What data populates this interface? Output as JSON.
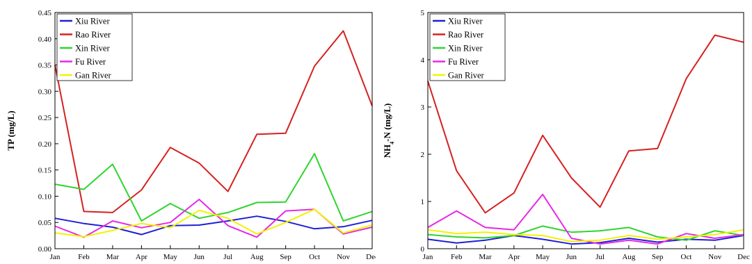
{
  "chart_data": [
    {
      "type": "line",
      "title": "",
      "xlabel": "",
      "ylabel": "TP (mg/L)",
      "categories": [
        "Jan",
        "Feb",
        "Mar",
        "Apr",
        "May",
        "Jun",
        "Jul",
        "Aug",
        "Sep",
        "Oct",
        "Nov",
        "Dec"
      ],
      "ylim": [
        0,
        0.45
      ],
      "yticks": [
        "0.00",
        "0.05",
        "0.10",
        "0.15",
        "0.20",
        "0.25",
        "0.30",
        "0.35",
        "0.40",
        "0.45"
      ],
      "grid": false,
      "legend_position": "top-left",
      "series": [
        {
          "name": "Xiu River",
          "color": "#1f1fd6",
          "values": [
            0.058,
            0.048,
            0.041,
            0.027,
            0.044,
            0.045,
            0.053,
            0.062,
            0.052,
            0.038,
            0.042,
            0.054
          ]
        },
        {
          "name": "Rao River",
          "color": "#d62020",
          "values": [
            0.35,
            0.071,
            0.069,
            0.112,
            0.193,
            0.163,
            0.109,
            0.218,
            0.22,
            0.348,
            0.415,
            0.272
          ]
        },
        {
          "name": "Xin River",
          "color": "#2fd42f",
          "values": [
            0.123,
            0.113,
            0.161,
            0.053,
            0.086,
            0.058,
            0.069,
            0.088,
            0.089,
            0.181,
            0.053,
            0.071
          ]
        },
        {
          "name": "Fu River",
          "color": "#e629e6",
          "values": [
            0.043,
            0.022,
            0.053,
            0.04,
            0.05,
            0.094,
            0.044,
            0.022,
            0.072,
            0.075,
            0.028,
            0.041
          ]
        },
        {
          "name": "Gan River",
          "color": "#f2f200",
          "values": [
            0.03,
            0.023,
            0.035,
            0.048,
            0.04,
            0.073,
            0.058,
            0.028,
            0.05,
            0.075,
            0.03,
            0.045
          ]
        }
      ]
    },
    {
      "type": "line",
      "title": "",
      "xlabel": "",
      "ylabel": "NH",
      "ylabel_subscript": "4",
      "ylabel_suffix": "-N (mg/L)",
      "categories": [
        "Jan",
        "Feb",
        "Mar",
        "Apr",
        "May",
        "Jun",
        "Jul",
        "Aug",
        "Sep",
        "Oct",
        "Nov",
        "Dec"
      ],
      "ylim": [
        0,
        5
      ],
      "yticks": [
        "0",
        "1",
        "2",
        "3",
        "4",
        "5"
      ],
      "grid": false,
      "legend_position": "top-left",
      "series": [
        {
          "name": "Xiu River",
          "color": "#1f1fd6",
          "values": [
            0.2,
            0.12,
            0.18,
            0.28,
            0.2,
            0.1,
            0.13,
            0.22,
            0.14,
            0.2,
            0.18,
            0.28
          ]
        },
        {
          "name": "Rao River",
          "color": "#d62020",
          "values": [
            3.55,
            1.65,
            0.76,
            1.18,
            2.4,
            1.5,
            0.88,
            2.07,
            2.12,
            3.6,
            4.52,
            4.37
          ]
        },
        {
          "name": "Xin River",
          "color": "#2fd42f",
          "values": [
            0.3,
            0.25,
            0.23,
            0.28,
            0.48,
            0.35,
            0.38,
            0.45,
            0.25,
            0.18,
            0.38,
            0.28
          ]
        },
        {
          "name": "Fu River",
          "color": "#e629e6",
          "values": [
            0.45,
            0.8,
            0.45,
            0.4,
            1.15,
            0.22,
            0.1,
            0.18,
            0.1,
            0.32,
            0.22,
            0.3
          ]
        },
        {
          "name": "Gan River",
          "color": "#f2f200",
          "values": [
            0.4,
            0.32,
            0.35,
            0.3,
            0.28,
            0.15,
            0.18,
            0.28,
            0.2,
            0.25,
            0.3,
            0.4
          ]
        }
      ]
    }
  ]
}
